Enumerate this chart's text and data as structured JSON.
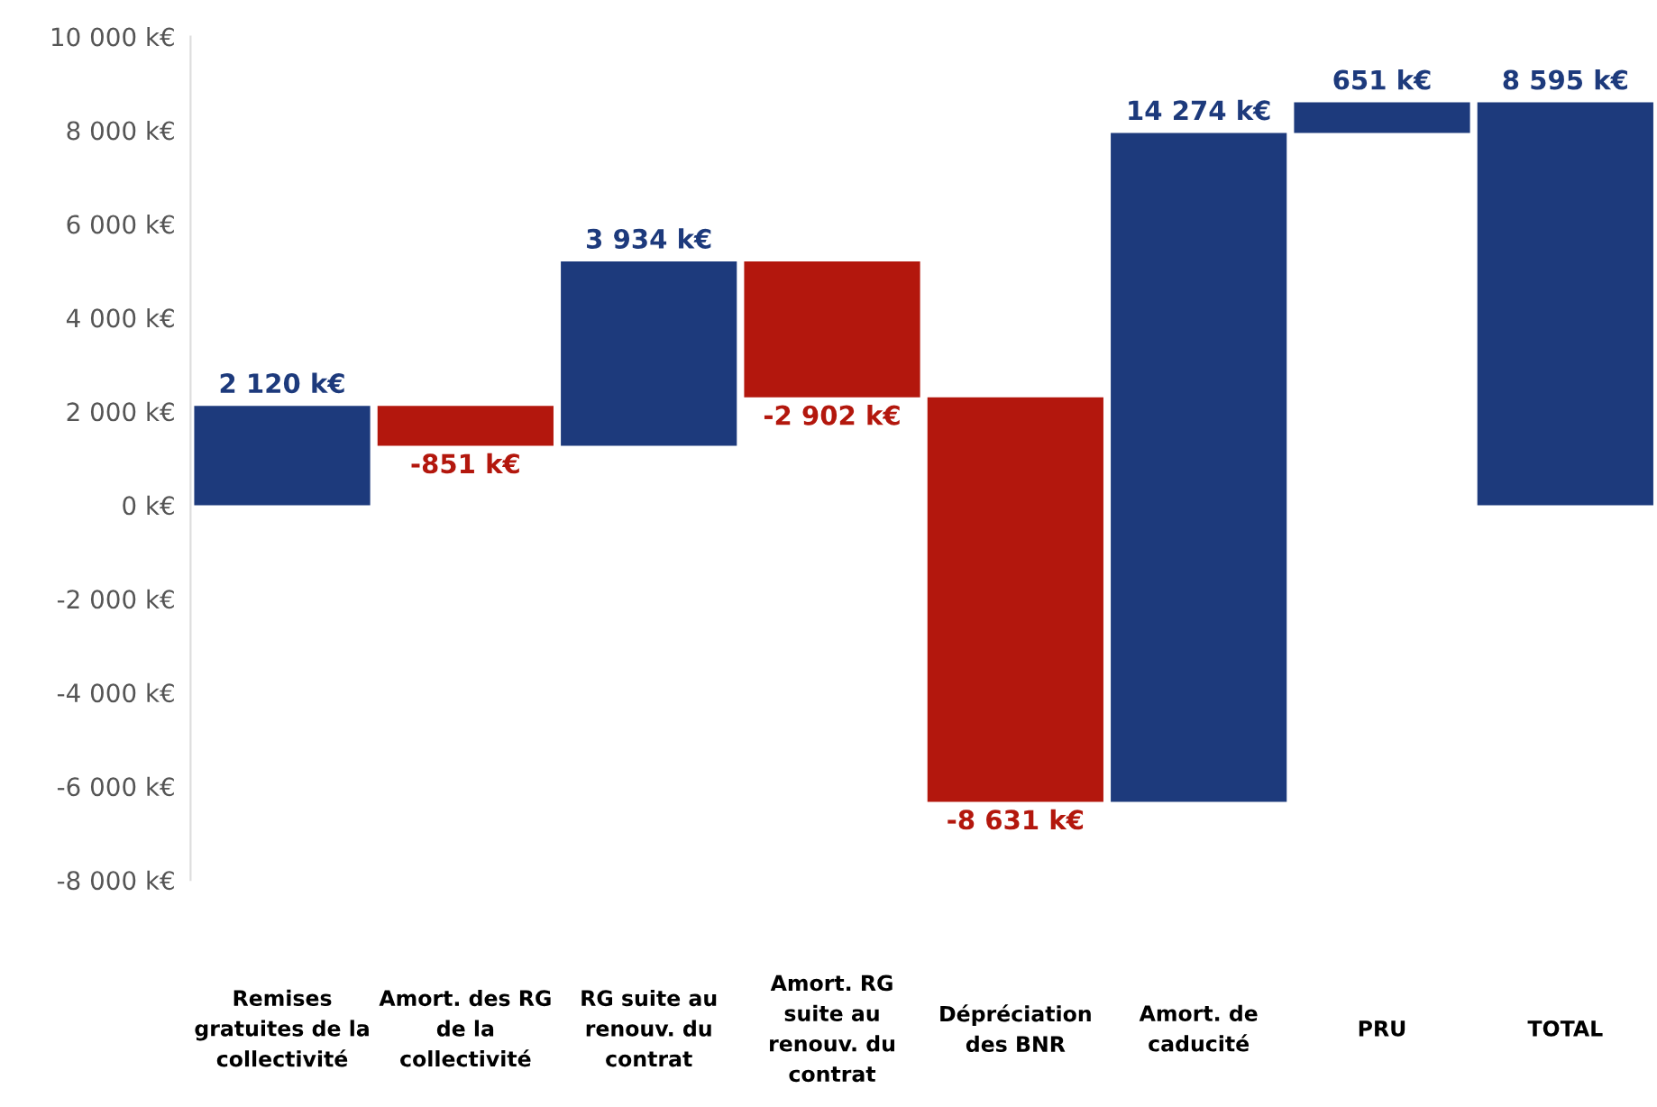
{
  "chart_data": {
    "type": "bar",
    "categories": [
      "Remises\ngratuites de la\ncollectivité",
      "Amort. des RG\nde la\ncollectivité",
      "RG suite au\nrenouv. du\ncontrat",
      "Amort. RG\nsuite au\nrenouv. du\ncontrat",
      "Dépréciation\ndes BNR",
      "Amort. de\ncaducité",
      "PRU",
      "TOTAL"
    ],
    "values": [
      2120,
      -851,
      3934,
      -2902,
      -8631,
      14274,
      651,
      8595
    ],
    "base": [
      0,
      2120,
      1269,
      5203,
      2301,
      -6330,
      7944,
      0
    ],
    "colors": [
      "#1d3a7c",
      "#b3170d",
      "#1d3a7c",
      "#b3170d",
      "#b3170d",
      "#1d3a7c",
      "#1d3a7c",
      "#1d3a7c"
    ],
    "value_labels": [
      "2 120 k€",
      "-851 k€",
      "3 934 k€",
      "-2 902 k€",
      "-8 631 k€",
      "14 274 k€",
      "651 k€",
      "8 595 k€"
    ],
    "ylim": [
      -8000,
      10000
    ],
    "yticks": [
      {
        "value": -8000,
        "label": "-8 000 k€"
      },
      {
        "value": -6000,
        "label": "-6 000 k€"
      },
      {
        "value": -4000,
        "label": "-4 000 k€"
      },
      {
        "value": -2000,
        "label": "-2 000 k€"
      },
      {
        "value": 0,
        "label": "0 k€"
      },
      {
        "value": 2000,
        "label": "2 000 k€"
      },
      {
        "value": 4000,
        "label": "4 000 k€"
      },
      {
        "value": 6000,
        "label": "6 000 k€"
      },
      {
        "value": 8000,
        "label": "8 000 k€"
      },
      {
        "value": 10000,
        "label": "10 000 k€"
      }
    ],
    "grid": false,
    "legend": false
  }
}
